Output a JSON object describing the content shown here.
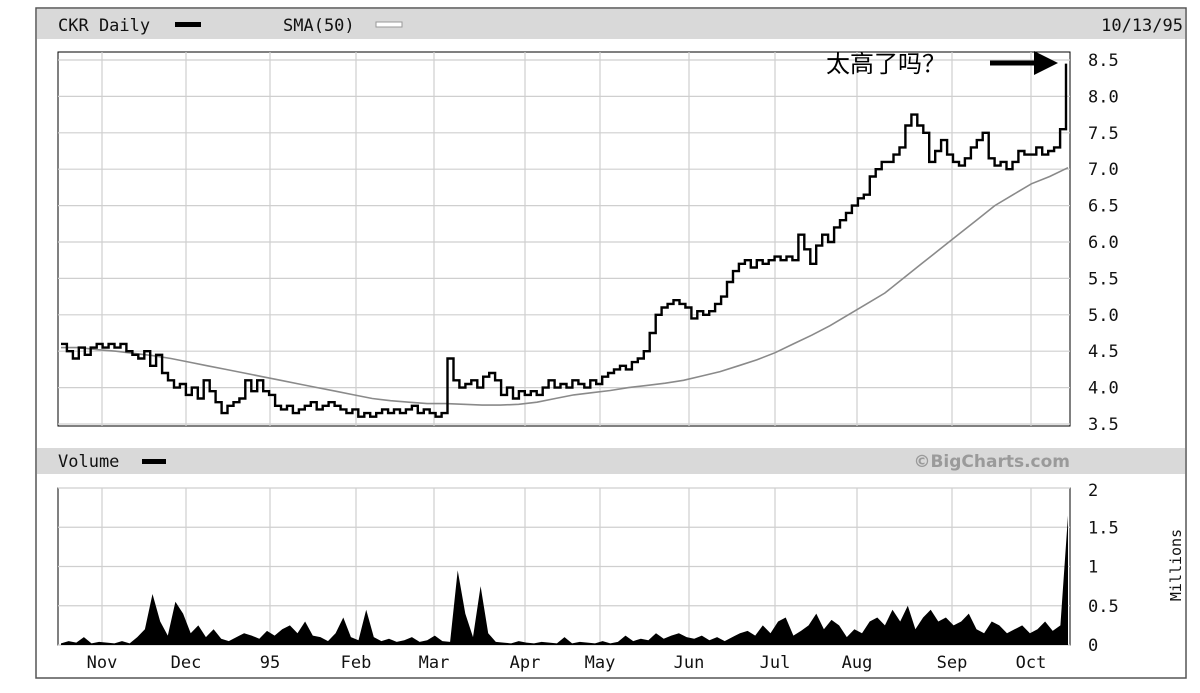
{
  "header": {
    "series_label": "CKR Daily",
    "sma_label": "SMA(50)",
    "date": "10/13/95",
    "annotation": "太高了吗？"
  },
  "volume_header": {
    "label": "Volume",
    "credit": "©BigCharts.com"
  },
  "colors": {
    "background": "#ffffff",
    "header_band": "#d9d9d9",
    "grid": "#cfcfcf",
    "price_line": "#000000",
    "sma_line": "#8a8a8a",
    "volume_fill": "#000000",
    "credit_text": "#9a9a9a"
  },
  "chart_data": [
    {
      "type": "line",
      "title": "CKR Daily",
      "x_tick_labels": [
        "Nov",
        "Dec",
        "95",
        "Feb",
        "Mar",
        "Apr",
        "May",
        "Jun",
        "Jul",
        "Aug",
        "Sep",
        "Oct"
      ],
      "y_tick_labels": [
        "3.5",
        "4.0",
        "4.5",
        "5.0",
        "5.5",
        "6.0",
        "6.5",
        "7.0",
        "7.5",
        "8.0",
        "8.5"
      ],
      "ylim": [
        3.5,
        8.5
      ],
      "grid": true,
      "series": [
        {
          "name": "CKR Daily",
          "style": "step",
          "values": [
            4.6,
            4.5,
            4.4,
            4.55,
            4.45,
            4.55,
            4.6,
            4.55,
            4.6,
            4.55,
            4.6,
            4.5,
            4.45,
            4.4,
            4.5,
            4.3,
            4.45,
            4.2,
            4.1,
            4.0,
            4.05,
            3.9,
            4.0,
            3.85,
            4.1,
            3.95,
            3.8,
            3.65,
            3.75,
            3.8,
            3.85,
            4.1,
            3.95,
            4.1,
            3.95,
            3.9,
            3.75,
            3.7,
            3.75,
            3.65,
            3.7,
            3.75,
            3.8,
            3.7,
            3.75,
            3.8,
            3.75,
            3.7,
            3.65,
            3.7,
            3.6,
            3.65,
            3.6,
            3.65,
            3.7,
            3.65,
            3.7,
            3.65,
            3.7,
            3.75,
            3.65,
            3.7,
            3.65,
            3.6,
            3.65,
            4.4,
            4.1,
            4.0,
            4.05,
            4.1,
            4.0,
            4.15,
            4.2,
            4.1,
            3.9,
            4.0,
            3.85,
            3.95,
            3.9,
            3.95,
            3.9,
            4.0,
            4.1,
            4.0,
            4.05,
            4.0,
            4.1,
            4.05,
            4.0,
            4.1,
            4.05,
            4.15,
            4.2,
            4.25,
            4.3,
            4.25,
            4.35,
            4.4,
            4.5,
            4.75,
            5.0,
            5.1,
            5.15,
            5.2,
            5.15,
            5.1,
            4.95,
            5.05,
            5.0,
            5.05,
            5.15,
            5.25,
            5.45,
            5.6,
            5.7,
            5.75,
            5.65,
            5.75,
            5.7,
            5.75,
            5.8,
            5.75,
            5.8,
            5.75,
            6.1,
            5.9,
            5.7,
            5.95,
            6.1,
            6.0,
            6.2,
            6.3,
            6.4,
            6.5,
            6.6,
            6.65,
            6.9,
            7.0,
            7.1,
            7.1,
            7.2,
            7.3,
            7.6,
            7.75,
            7.6,
            7.5,
            7.1,
            7.25,
            7.4,
            7.2,
            7.1,
            7.05,
            7.15,
            7.3,
            7.4,
            7.5,
            7.15,
            7.05,
            7.1,
            7.0,
            7.1,
            7.25,
            7.2,
            7.2,
            7.3,
            7.2,
            7.25,
            7.3,
            7.55,
            8.45
          ]
        },
        {
          "name": "SMA(50)",
          "style": "line",
          "values": [
            4.55,
            4.55,
            4.52,
            4.5,
            4.47,
            4.44,
            4.4,
            4.35,
            4.3,
            4.25,
            4.2,
            4.15,
            4.1,
            4.05,
            4.0,
            3.95,
            3.9,
            3.85,
            3.82,
            3.8,
            3.78,
            3.78,
            3.77,
            3.76,
            3.76,
            3.77,
            3.8,
            3.85,
            3.9,
            3.93,
            3.96,
            4.0,
            4.03,
            4.06,
            4.1,
            4.16,
            4.22,
            4.3,
            4.38,
            4.48,
            4.6,
            4.72,
            4.85,
            5.0,
            5.15,
            5.3,
            5.5,
            5.7,
            5.9,
            6.1,
            6.3,
            6.5,
            6.65,
            6.8,
            6.9,
            7.02
          ]
        }
      ]
    },
    {
      "type": "area",
      "title": "Volume",
      "ylabel": "Millions",
      "y_tick_labels": [
        "0",
        "0.5",
        "1",
        "1.5",
        "2"
      ],
      "ylim": [
        0,
        2
      ],
      "grid": true,
      "values": [
        0.02,
        0.05,
        0.03,
        0.1,
        0.02,
        0.04,
        0.03,
        0.02,
        0.05,
        0.02,
        0.1,
        0.2,
        0.65,
        0.3,
        0.12,
        0.55,
        0.4,
        0.15,
        0.25,
        0.1,
        0.2,
        0.08,
        0.05,
        0.1,
        0.15,
        0.12,
        0.08,
        0.18,
        0.12,
        0.2,
        0.25,
        0.15,
        0.3,
        0.12,
        0.1,
        0.05,
        0.15,
        0.35,
        0.1,
        0.06,
        0.45,
        0.1,
        0.05,
        0.08,
        0.04,
        0.06,
        0.1,
        0.04,
        0.06,
        0.12,
        0.05,
        0.04,
        0.95,
        0.4,
        0.1,
        0.75,
        0.15,
        0.04,
        0.03,
        0.02,
        0.05,
        0.03,
        0.02,
        0.04,
        0.03,
        0.02,
        0.1,
        0.02,
        0.04,
        0.03,
        0.02,
        0.05,
        0.02,
        0.04,
        0.12,
        0.05,
        0.08,
        0.06,
        0.15,
        0.08,
        0.12,
        0.15,
        0.1,
        0.08,
        0.12,
        0.06,
        0.1,
        0.05,
        0.1,
        0.15,
        0.18,
        0.12,
        0.25,
        0.15,
        0.3,
        0.35,
        0.12,
        0.18,
        0.25,
        0.4,
        0.2,
        0.32,
        0.25,
        0.1,
        0.2,
        0.15,
        0.3,
        0.35,
        0.25,
        0.45,
        0.3,
        0.5,
        0.2,
        0.35,
        0.45,
        0.3,
        0.35,
        0.25,
        0.3,
        0.4,
        0.2,
        0.15,
        0.3,
        0.25,
        0.15,
        0.2,
        0.25,
        0.15,
        0.2,
        0.3,
        0.18,
        0.25,
        1.65
      ]
    }
  ]
}
